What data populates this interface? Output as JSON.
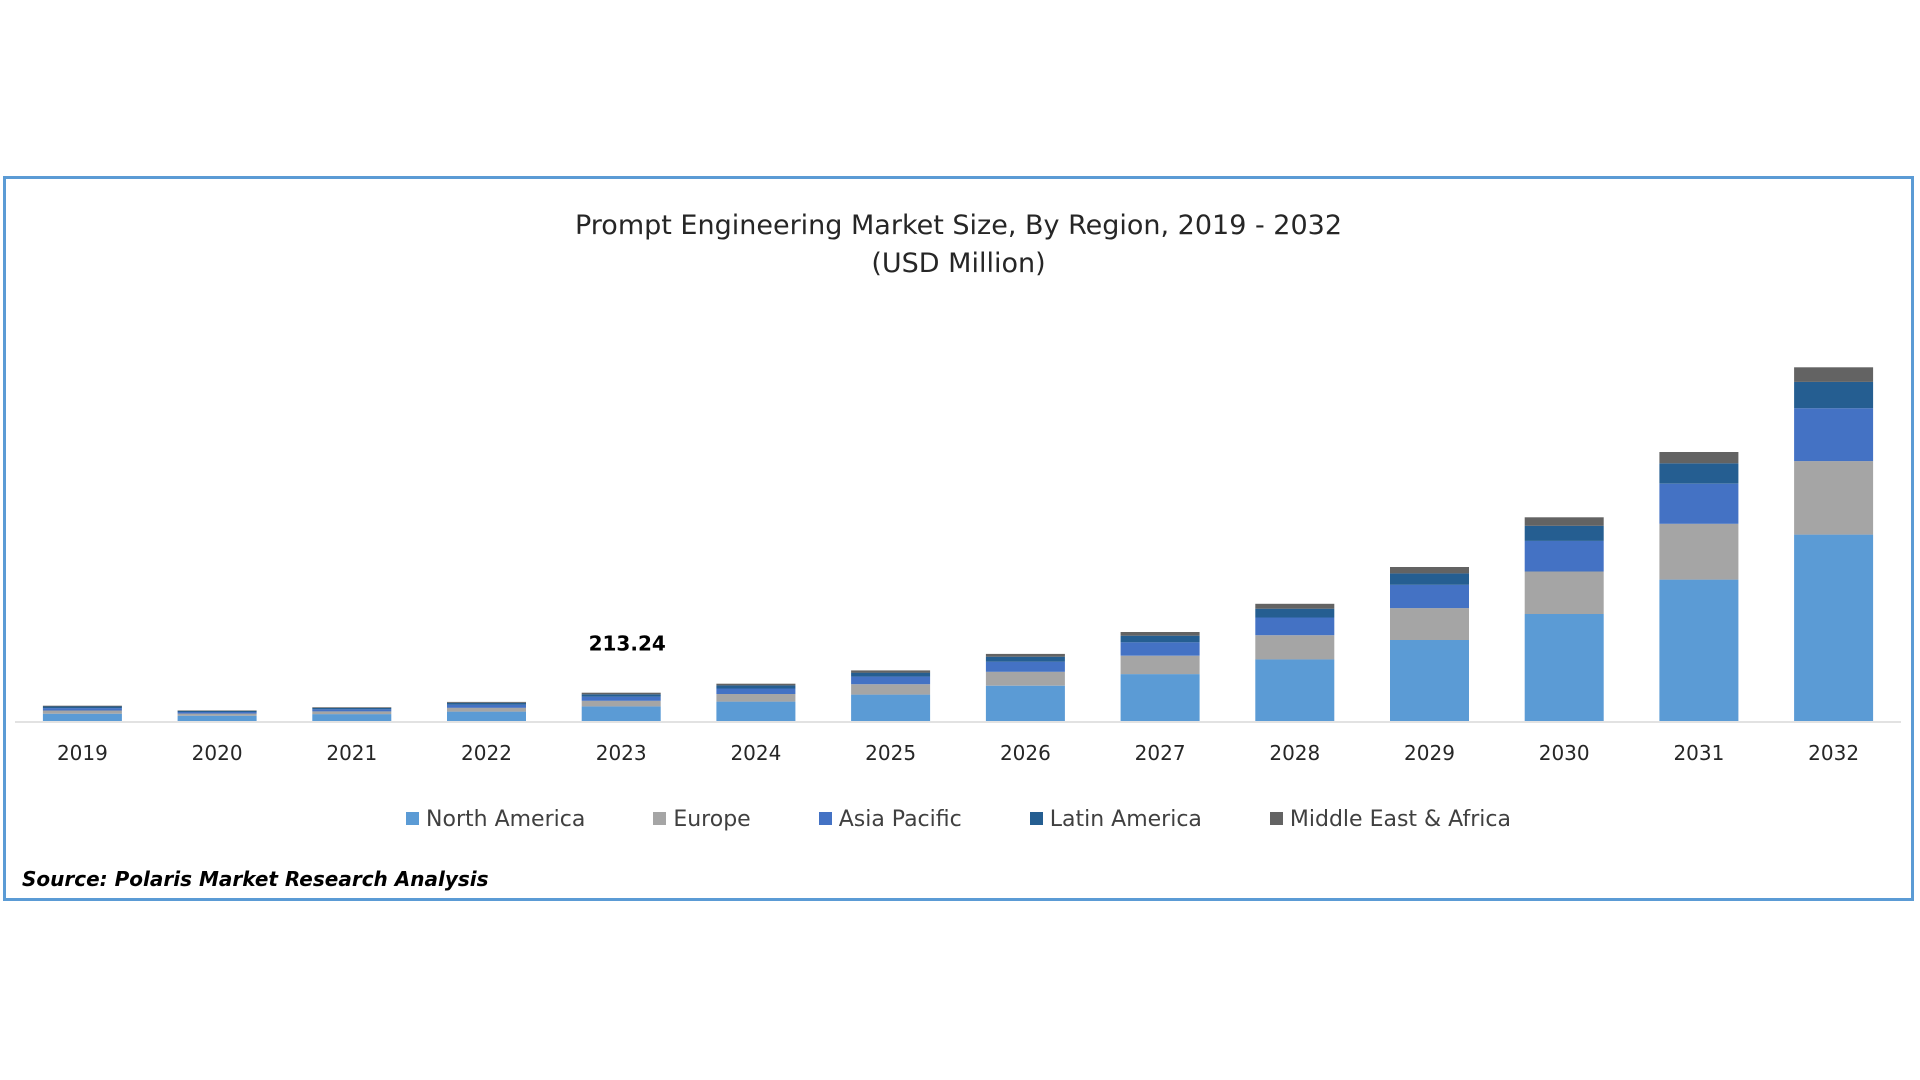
{
  "chart_data": {
    "type": "bar",
    "stacked": true,
    "title": "Prompt Engineering Market Size, By Region, 2019 - 2032",
    "subtitle": "(USD Million)",
    "categories": [
      "2019",
      "2020",
      "2021",
      "2022",
      "2023",
      "2024",
      "2025",
      "2026",
      "2027",
      "2028",
      "2029",
      "2030",
      "2031",
      "2032"
    ],
    "series": [
      {
        "name": "North America",
        "color": "#5b9bd5",
        "values": [
          55,
          40,
          52,
          71,
          110,
          146,
          199,
          266,
          353,
          464,
          610,
          805,
          1064,
          1403
        ]
      },
      {
        "name": "Europe",
        "color": "#a5a5a5",
        "values": [
          24,
          16,
          20,
          29,
          42,
          57,
          78,
          104,
          138,
          182,
          240,
          320,
          420,
          553
        ]
      },
      {
        "name": "Asia Pacific",
        "color": "#4472c4",
        "values": [
          18,
          12,
          16,
          23,
          31,
          42,
          57,
          76,
          101,
          133,
          175,
          230,
          302,
          398
        ]
      },
      {
        "name": "Latin America",
        "color": "#255e91",
        "values": [
          12,
          8,
          10,
          14,
          18,
          23,
          30,
          38,
          50,
          66,
          86,
          114,
          153,
          198
        ]
      },
      {
        "name": "Middle East & Africa",
        "color": "#636363",
        "values": [
          6,
          4,
          5,
          7,
          12,
          13,
          17,
          21,
          28,
          37,
          48,
          64,
          85,
          110
        ]
      }
    ],
    "annotations": [
      {
        "category": "2023",
        "text": "213.24"
      }
    ],
    "ylim": [
      0,
      2950
    ],
    "legend": "bottom",
    "grid": false
  },
  "source": "Source: Polaris Market Research Analysis"
}
